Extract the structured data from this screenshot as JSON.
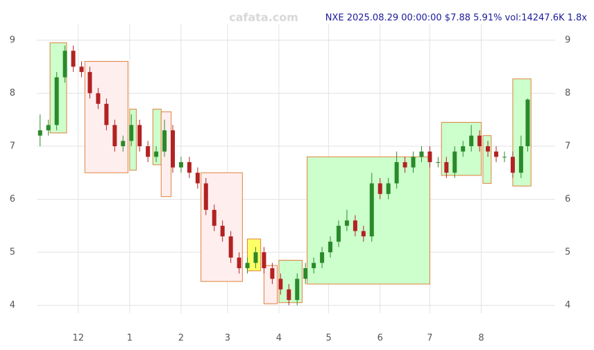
{
  "chart_data": {
    "type": "candlestick",
    "title": "NXE 2025.08.29 00:00:00 $7.88 5.91% vol:14247.6K 1.8x",
    "watermark": "cafata.com",
    "x": [
      0,
      5,
      10,
      15,
      20,
      25,
      30,
      35,
      40,
      45,
      50,
      55,
      60,
      65,
      70,
      75,
      80,
      85,
      90,
      95,
      100,
      105,
      110,
      115,
      120,
      125,
      130,
      135,
      140,
      145,
      150,
      155,
      160,
      165,
      170,
      175,
      180,
      185,
      190,
      195,
      200,
      205,
      210,
      215,
      220,
      225,
      230,
      235,
      240,
      245,
      250,
      255,
      260,
      265,
      270,
      275,
      280,
      285,
      290,
      294
    ],
    "close": [
      7.3,
      7.4,
      8.3,
      8.8,
      8.5,
      8.4,
      8.0,
      7.8,
      7.4,
      7.0,
      7.1,
      7.4,
      7.0,
      6.8,
      6.9,
      7.3,
      6.6,
      6.7,
      6.5,
      6.3,
      5.8,
      5.5,
      5.3,
      4.9,
      4.7,
      4.8,
      5.0,
      4.7,
      4.5,
      4.3,
      4.1,
      4.5,
      4.7,
      4.8,
      5.0,
      5.2,
      5.5,
      5.6,
      5.4,
      5.3,
      6.3,
      6.1,
      6.3,
      6.7,
      6.6,
      6.8,
      6.9,
      6.7,
      6.7,
      6.5,
      6.9,
      7.0,
      7.2,
      7.0,
      6.9,
      6.8,
      6.8,
      6.5,
      7.0,
      7.88
    ],
    "open": [
      7.2,
      7.3,
      7.4,
      8.3,
      8.8,
      8.5,
      8.4,
      8.0,
      7.8,
      7.4,
      7.0,
      7.1,
      7.4,
      7.0,
      6.8,
      6.9,
      7.3,
      6.6,
      6.7,
      6.5,
      6.3,
      5.8,
      5.5,
      5.3,
      4.9,
      4.7,
      4.8,
      5.0,
      4.7,
      4.5,
      4.3,
      4.1,
      4.5,
      4.7,
      4.8,
      5.0,
      5.2,
      5.5,
      5.6,
      5.4,
      5.3,
      6.3,
      6.1,
      6.3,
      6.7,
      6.6,
      6.8,
      6.9,
      6.7,
      6.7,
      6.5,
      6.9,
      7.0,
      7.2,
      7.0,
      6.9,
      6.8,
      6.8,
      6.5,
      7.0
    ],
    "high": [
      7.6,
      7.5,
      8.4,
      8.9,
      8.9,
      8.6,
      8.5,
      8.1,
      7.9,
      7.5,
      7.2,
      7.6,
      7.5,
      7.1,
      7.0,
      7.5,
      7.4,
      6.8,
      6.8,
      6.6,
      6.4,
      5.9,
      5.6,
      5.4,
      5.0,
      4.9,
      5.1,
      5.1,
      4.8,
      4.6,
      4.4,
      4.6,
      4.8,
      4.9,
      5.1,
      5.3,
      5.6,
      5.8,
      5.7,
      5.5,
      6.5,
      6.4,
      6.4,
      6.9,
      6.8,
      6.9,
      7.0,
      7.0,
      6.8,
      6.8,
      7.0,
      7.1,
      7.4,
      7.3,
      7.1,
      7.0,
      6.9,
      6.9,
      7.2,
      7.9
    ],
    "low": [
      7.0,
      7.2,
      7.3,
      8.2,
      8.4,
      8.3,
      7.9,
      7.7,
      7.3,
      6.9,
      6.9,
      7.0,
      6.9,
      6.7,
      6.7,
      6.8,
      6.5,
      6.5,
      6.4,
      6.2,
      5.7,
      5.4,
      5.2,
      4.8,
      4.6,
      4.6,
      4.7,
      4.6,
      4.4,
      4.2,
      4.0,
      4.0,
      4.4,
      4.6,
      4.7,
      4.9,
      5.1,
      5.4,
      5.3,
      5.2,
      5.2,
      6.0,
      6.0,
      6.2,
      6.5,
      6.5,
      6.7,
      6.6,
      6.6,
      6.4,
      6.4,
      6.8,
      6.9,
      6.9,
      6.8,
      6.7,
      6.7,
      6.4,
      6.4,
      6.9
    ],
    "up_color": "#2a8a2a",
    "down_color": "#b22222",
    "boxes": [
      {
        "x": [
          6,
          16
        ],
        "y": [
          7.25,
          8.95
        ],
        "color": "#ccffcc"
      },
      {
        "x": [
          27,
          53
        ],
        "y": [
          6.5,
          8.6
        ],
        "color": "#ffeeee"
      },
      {
        "x": [
          54,
          58
        ],
        "y": [
          6.55,
          7.7
        ],
        "color": "#ccffcc"
      },
      {
        "x": [
          68,
          73
        ],
        "y": [
          6.65,
          7.7
        ],
        "color": "#ccffcc"
      },
      {
        "x": [
          73,
          79
        ],
        "y": [
          6.05,
          7.65
        ],
        "color": "#ffeeee"
      },
      {
        "x": [
          97,
          122
        ],
        "y": [
          4.45,
          6.5
        ],
        "color": "#ffeeee"
      },
      {
        "x": [
          125,
          133
        ],
        "y": [
          4.65,
          5.25
        ],
        "color": "#ffff66"
      },
      {
        "x": [
          135,
          143
        ],
        "y": [
          4.03,
          4.75
        ],
        "color": "#ffeeee"
      },
      {
        "x": [
          144,
          158
        ],
        "y": [
          4.05,
          4.85
        ],
        "color": "#ccffcc"
      },
      {
        "x": [
          161,
          235
        ],
        "y": [
          4.4,
          6.8
        ],
        "color": "#ccffcc"
      },
      {
        "x": [
          242,
          266
        ],
        "y": [
          6.45,
          7.45
        ],
        "color": "#ccffcc"
      },
      {
        "x": [
          267,
          272
        ],
        "y": [
          6.3,
          7.2
        ],
        "color": "#ccffcc"
      },
      {
        "x": [
          285,
          296
        ],
        "y": [
          6.25,
          8.27
        ],
        "color": "#ccffcc"
      }
    ],
    "box_stroke": "#e0803a",
    "xlim": [
      -2,
      298
    ],
    "ylim": [
      3.85,
      9.3
    ],
    "xticks": [
      {
        "value": 23,
        "label": "12"
      },
      {
        "value": 54,
        "label": "1"
      },
      {
        "value": 85,
        "label": "2"
      },
      {
        "value": 113,
        "label": "3"
      },
      {
        "value": 144,
        "label": "4"
      },
      {
        "value": 174,
        "label": "5"
      },
      {
        "value": 205,
        "label": "6"
      },
      {
        "value": 235,
        "label": "7"
      },
      {
        "value": 266,
        "label": "8"
      }
    ],
    "yticks": [
      4,
      5,
      6,
      7,
      8,
      9
    ],
    "grid": true
  }
}
